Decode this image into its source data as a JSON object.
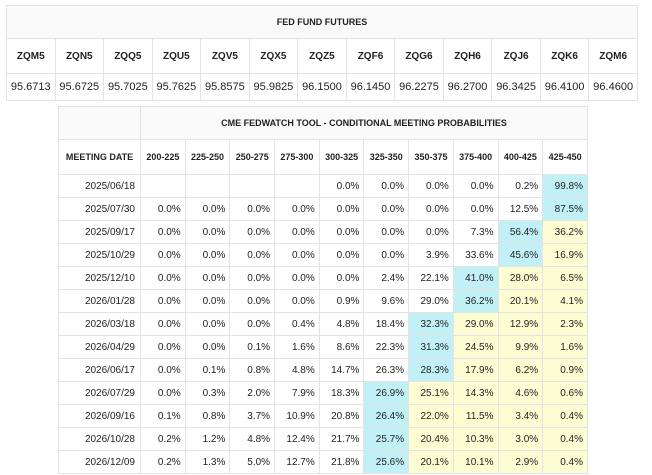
{
  "futures": {
    "title": "FED FUND FUTURES",
    "contracts": [
      "ZQM5",
      "ZQN5",
      "ZQQ5",
      "ZQU5",
      "ZQV5",
      "ZQX5",
      "ZQZ5",
      "ZQF6",
      "ZQG6",
      "ZQH6",
      "ZQJ6",
      "ZQK6",
      "ZQM6"
    ],
    "prices": [
      "95.6713",
      "95.6725",
      "95.7025",
      "95.7625",
      "95.8575",
      "95.9825",
      "96.1500",
      "96.1450",
      "96.2275",
      "96.2700",
      "96.3425",
      "96.4100",
      "96.4600"
    ]
  },
  "fedwatch": {
    "title": "CME FEDWATCH TOOL - CONDITIONAL MEETING PROBABILITIES",
    "date_header": "MEETING DATE",
    "rate_ranges": [
      "200-225",
      "225-250",
      "250-275",
      "275-300",
      "300-325",
      "325-350",
      "350-375",
      "375-400",
      "400-425",
      "425-450"
    ],
    "colors": {
      "blue_highlight": "#c1f1f7",
      "yellow_highlight": "#fdfdd4"
    },
    "rows": [
      {
        "date": "2025/06/18",
        "values": [
          "",
          "",
          "",
          "",
          "0.0%",
          "0.0%",
          "0.0%",
          "0.0%",
          "0.2%",
          "99.8%"
        ],
        "hl": [
          "",
          "",
          "",
          "",
          "",
          "",
          "",
          "",
          "",
          "b"
        ]
      },
      {
        "date": "2025/07/30",
        "values": [
          "0.0%",
          "0.0%",
          "0.0%",
          "0.0%",
          "0.0%",
          "0.0%",
          "0.0%",
          "0.0%",
          "12.5%",
          "87.5%"
        ],
        "hl": [
          "",
          "",
          "",
          "",
          "",
          "",
          "",
          "",
          "",
          "b"
        ]
      },
      {
        "date": "2025/09/17",
        "values": [
          "0.0%",
          "0.0%",
          "0.0%",
          "0.0%",
          "0.0%",
          "0.0%",
          "0.0%",
          "7.3%",
          "56.4%",
          "36.2%"
        ],
        "hl": [
          "",
          "",
          "",
          "",
          "",
          "",
          "",
          "",
          "b",
          "y"
        ]
      },
      {
        "date": "2025/10/29",
        "values": [
          "0.0%",
          "0.0%",
          "0.0%",
          "0.0%",
          "0.0%",
          "0.0%",
          "3.9%",
          "33.6%",
          "45.6%",
          "16.9%"
        ],
        "hl": [
          "",
          "",
          "",
          "",
          "",
          "",
          "",
          "",
          "b",
          "y"
        ]
      },
      {
        "date": "2025/12/10",
        "values": [
          "0.0%",
          "0.0%",
          "0.0%",
          "0.0%",
          "0.0%",
          "2.4%",
          "22.1%",
          "41.0%",
          "28.0%",
          "6.5%"
        ],
        "hl": [
          "",
          "",
          "",
          "",
          "",
          "",
          "",
          "b",
          "y",
          "y"
        ]
      },
      {
        "date": "2026/01/28",
        "values": [
          "0.0%",
          "0.0%",
          "0.0%",
          "0.0%",
          "0.9%",
          "9.6%",
          "29.0%",
          "36.2%",
          "20.1%",
          "4.1%"
        ],
        "hl": [
          "",
          "",
          "",
          "",
          "",
          "",
          "",
          "b",
          "y",
          "y"
        ]
      },
      {
        "date": "2026/03/18",
        "values": [
          "0.0%",
          "0.0%",
          "0.0%",
          "0.4%",
          "4.8%",
          "18.4%",
          "32.3%",
          "29.0%",
          "12.9%",
          "2.3%"
        ],
        "hl": [
          "",
          "",
          "",
          "",
          "",
          "",
          "b",
          "y",
          "y",
          "y"
        ]
      },
      {
        "date": "2026/04/29",
        "values": [
          "0.0%",
          "0.0%",
          "0.1%",
          "1.6%",
          "8.6%",
          "22.3%",
          "31.3%",
          "24.5%",
          "9.9%",
          "1.6%"
        ],
        "hl": [
          "",
          "",
          "",
          "",
          "",
          "",
          "b",
          "y",
          "y",
          "y"
        ]
      },
      {
        "date": "2026/06/17",
        "values": [
          "0.0%",
          "0.1%",
          "0.8%",
          "4.8%",
          "14.7%",
          "26.3%",
          "28.3%",
          "17.9%",
          "6.2%",
          "0.9%"
        ],
        "hl": [
          "",
          "",
          "",
          "",
          "",
          "",
          "b",
          "y",
          "y",
          "y"
        ]
      },
      {
        "date": "2026/07/29",
        "values": [
          "0.0%",
          "0.3%",
          "2.0%",
          "7.9%",
          "18.3%",
          "26.9%",
          "25.1%",
          "14.3%",
          "4.6%",
          "0.6%"
        ],
        "hl": [
          "",
          "",
          "",
          "",
          "",
          "b",
          "y",
          "y",
          "y",
          "y"
        ]
      },
      {
        "date": "2026/09/16",
        "values": [
          "0.1%",
          "0.8%",
          "3.7%",
          "10.9%",
          "20.8%",
          "26.4%",
          "22.0%",
          "11.5%",
          "3.4%",
          "0.4%"
        ],
        "hl": [
          "",
          "",
          "",
          "",
          "",
          "b",
          "y",
          "y",
          "y",
          "y"
        ]
      },
      {
        "date": "2026/10/28",
        "values": [
          "0.2%",
          "1.2%",
          "4.8%",
          "12.4%",
          "21.7%",
          "25.7%",
          "20.4%",
          "10.3%",
          "3.0%",
          "0.4%"
        ],
        "hl": [
          "",
          "",
          "",
          "",
          "",
          "b",
          "y",
          "y",
          "y",
          "y"
        ]
      },
      {
        "date": "2026/12/09",
        "values": [
          "0.2%",
          "1.3%",
          "5.0%",
          "12.7%",
          "21.8%",
          "25.6%",
          "20.1%",
          "10.1%",
          "2.9%",
          "0.4%"
        ],
        "hl": [
          "",
          "",
          "",
          "",
          "",
          "b",
          "y",
          "y",
          "y",
          "y"
        ]
      }
    ]
  }
}
